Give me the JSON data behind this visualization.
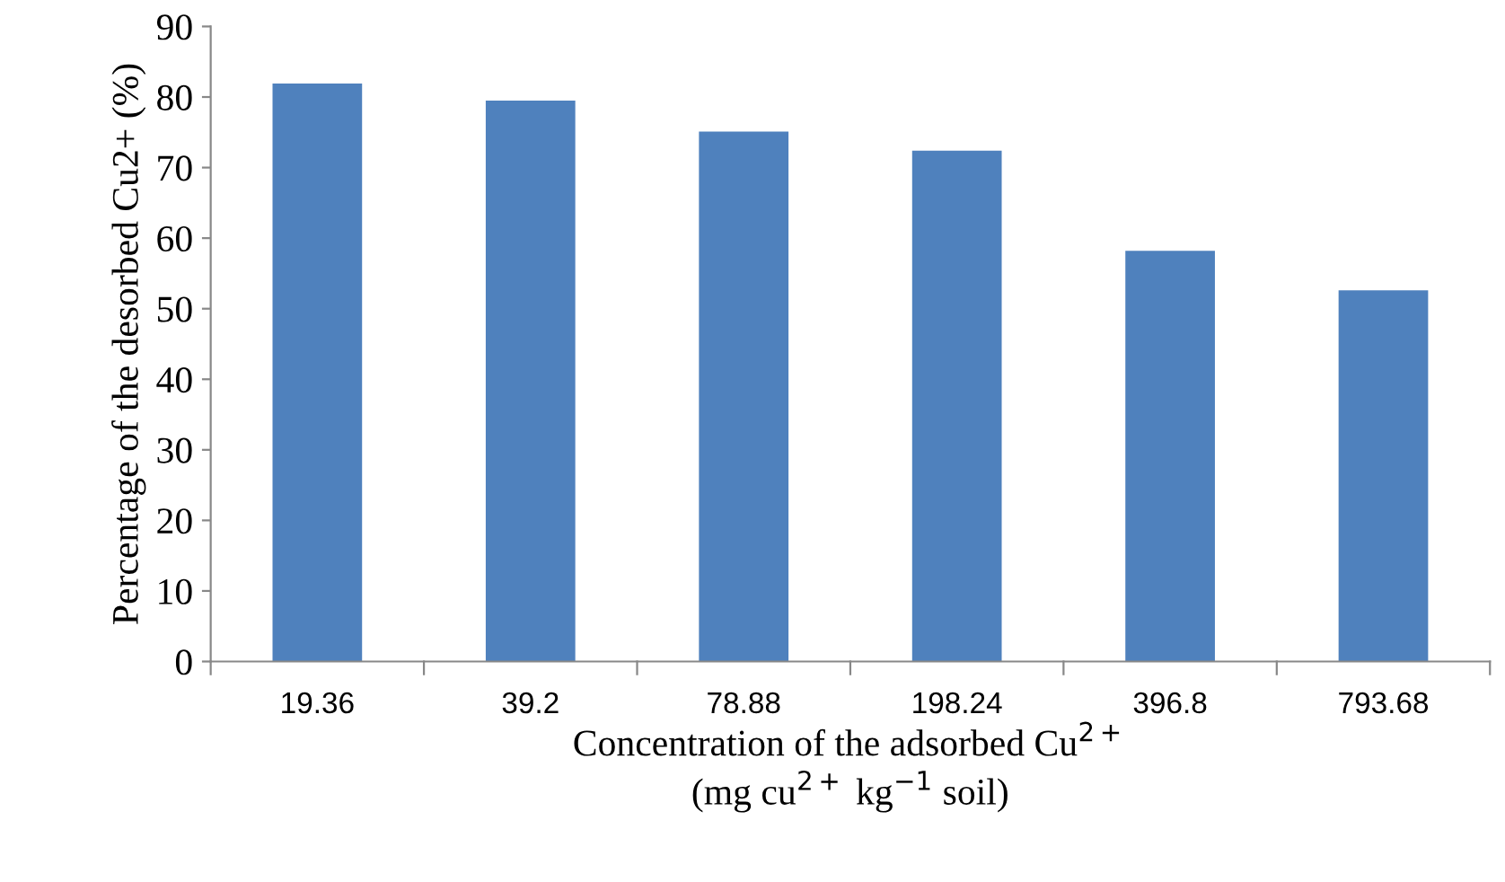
{
  "chart_data": {
    "type": "bar",
    "categories": [
      "19.36",
      "39.2",
      "78.88",
      "198.24",
      "396.8",
      "793.68"
    ],
    "values": [
      81.9,
      79.5,
      75.1,
      72.4,
      58.2,
      52.6
    ],
    "color": "#4f81bd",
    "ylim": [
      0,
      90
    ],
    "yticks": [
      0,
      10,
      20,
      30,
      40,
      50,
      60,
      70,
      80,
      90
    ],
    "xlabel": "Concentration of the adsorbed Cu$^{2+}$\n(mg cu$^{2+}$ kg$^{−1}$ soil)",
    "ylabel": "Percentage of the desorbed Cu2+ (%)",
    "grid": false
  }
}
